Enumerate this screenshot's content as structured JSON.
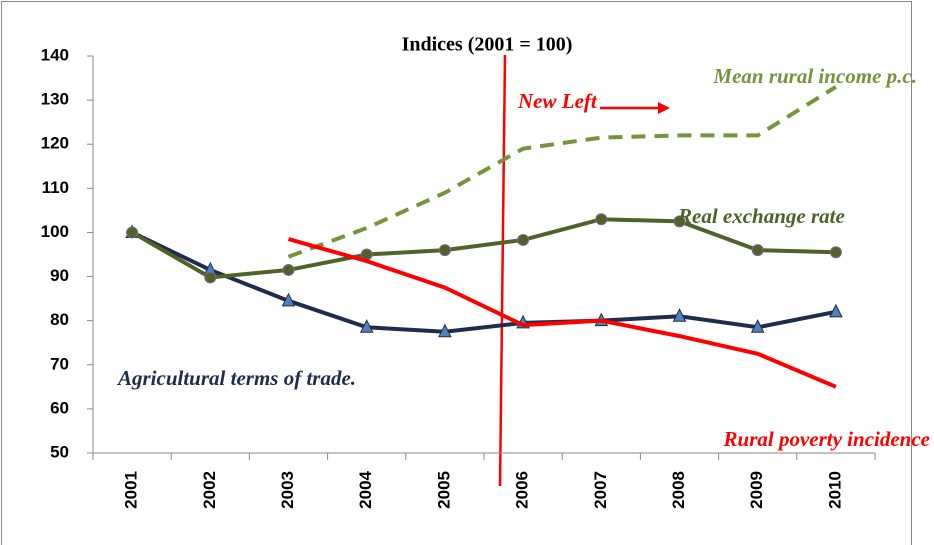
{
  "chart_data": {
    "type": "line",
    "title": "Indices (2001 = 100)",
    "categories": [
      "2001",
      "2002",
      "2003",
      "2004",
      "2005",
      "2006",
      "2007",
      "2008",
      "2009",
      "2010"
    ],
    "series": [
      {
        "name": "Agricultural terms of trade.",
        "color": "#1f2d4d",
        "marker": "triangle",
        "values": [
          100,
          91.5,
          84.5,
          78.5,
          77.5,
          79.5,
          80,
          81,
          78.5,
          82
        ]
      },
      {
        "name": "Real exchange rate",
        "color": "#4f6228",
        "marker": "circle",
        "values": [
          100,
          89.8,
          91.5,
          95,
          96,
          98.3,
          103,
          102.5,
          96,
          95.5
        ]
      },
      {
        "name": "Mean rural income p.c.",
        "color": "#77933c",
        "dashed": true,
        "values": [
          null,
          null,
          94.5,
          101,
          109,
          119,
          121.5,
          122,
          122,
          133
        ]
      },
      {
        "name": "Rural poverty incidence",
        "color": "#ff0000",
        "values": [
          null,
          null,
          98.5,
          93.5,
          87.5,
          79,
          80,
          76.5,
          72.5,
          65
        ]
      }
    ],
    "annotation": "New Left",
    "ylim": [
      50,
      140
    ],
    "yticks": [
      50,
      60,
      70,
      80,
      90,
      100,
      110,
      120,
      130,
      140
    ]
  }
}
